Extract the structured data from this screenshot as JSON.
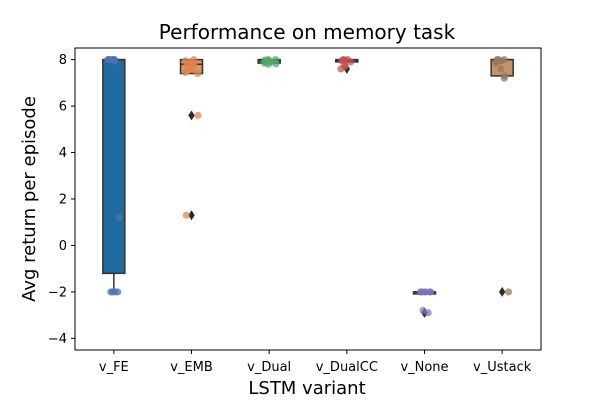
{
  "chart_data": {
    "type": "boxplot",
    "title": "Performance on memory task",
    "xlabel": "LSTM variant",
    "ylabel": "Avg return per episode",
    "ylim": [
      -4.5,
      8.5
    ],
    "yticks": [
      -4,
      -2,
      0,
      2,
      4,
      6,
      8
    ],
    "grid": false,
    "categories": [
      "v_FE",
      "v_EMB",
      "v_Dual",
      "v_DualCC",
      "v_None",
      "v_Ustack"
    ],
    "series": [
      {
        "category": "v_FE",
        "color": "#1f6b9f",
        "point_color": "#4c72b0",
        "box": {
          "whislo": -2.0,
          "q1": -1.2,
          "median": 8.0,
          "q3": 8.0,
          "whishi": 8.0
        },
        "fliers": [],
        "points": [
          8.0,
          8.0,
          8.0,
          8.0,
          8.0,
          7.95,
          8.0,
          1.2,
          -2.0,
          -2.0,
          -2.0,
          -2.0
        ]
      },
      {
        "category": "v_EMB",
        "color": "#d9955a",
        "point_color": "#dd8452",
        "box": {
          "whislo": 7.4,
          "q1": 7.4,
          "median": 7.8,
          "q3": 8.0,
          "whishi": 8.0
        },
        "fliers": [
          5.6,
          1.3
        ],
        "points": [
          8.0,
          7.95,
          7.9,
          7.85,
          7.8,
          7.75,
          7.7,
          7.6,
          7.5,
          7.45,
          7.4,
          5.6,
          1.3
        ]
      },
      {
        "category": "v_Dual",
        "color": "#55a868",
        "point_color": "#55a868",
        "box": {
          "whislo": 7.8,
          "q1": 7.85,
          "median": 7.95,
          "q3": 8.0,
          "whishi": 8.0
        },
        "fliers": [],
        "points": [
          8.0,
          8.0,
          7.98,
          7.95,
          7.92,
          7.9,
          7.88,
          7.85,
          7.82,
          7.8
        ]
      },
      {
        "category": "v_DualCC",
        "color": "#c44e52",
        "point_color": "#c44e52",
        "box": {
          "whislo": 7.9,
          "q1": 7.9,
          "median": 7.95,
          "q3": 8.0,
          "whishi": 8.0
        },
        "fliers": [
          7.6
        ],
        "points": [
          8.0,
          8.0,
          7.98,
          7.95,
          7.9,
          7.75,
          7.7,
          7.6
        ]
      },
      {
        "category": "v_None",
        "color": "#8172b3",
        "point_color": "#8172b3",
        "box": {
          "whislo": -2.0,
          "q1": -2.0,
          "median": -2.0,
          "q3": -2.0,
          "whishi": -2.0
        },
        "fliers": [
          -2.9
        ],
        "points": [
          -2.0,
          -2.0,
          -2.0,
          -2.0,
          -2.0,
          -2.0,
          -2.8,
          -2.9
        ]
      },
      {
        "category": "v_Ustack",
        "color": "#c4956a",
        "point_color": "#937860",
        "box": {
          "whislo": 7.3,
          "q1": 7.3,
          "median": 8.0,
          "q3": 8.0,
          "whishi": 8.0
        },
        "fliers": [
          -2.0
        ],
        "points": [
          8.0,
          8.0,
          8.0,
          7.95,
          7.9,
          7.85,
          7.6,
          7.3,
          7.2,
          -2.0
        ]
      }
    ]
  }
}
